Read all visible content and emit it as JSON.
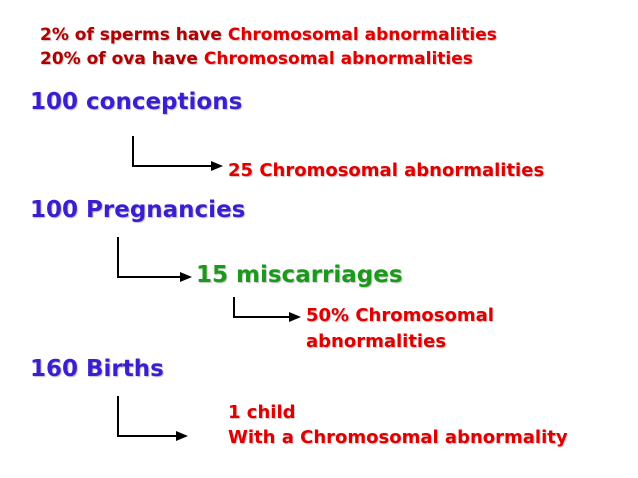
{
  "header": {
    "line1": {
      "prefix": "2% of sperms have ",
      "suffix": "Chromosomal abnormalities"
    },
    "line2": {
      "prefix": "20% of ova have ",
      "suffix": "Chromosomal abnormalities"
    }
  },
  "conceptions": {
    "label": "100 conceptions",
    "result": "25  Chromosomal abnormalities"
  },
  "pregnancies": {
    "label": "100 Pregnancies",
    "miscarriages": "15 miscarriages",
    "result_line1": "50% Chromosomal",
    "result_line2": "abnormalities"
  },
  "births": {
    "label": "160 Births",
    "result_line1": "1 child",
    "result_line2": "With a Chromosomal abnormality"
  },
  "colors": {
    "dark_red": "#b00000",
    "red": "#e00000",
    "blue": "#3a1fd0",
    "green": "#1a9a1a"
  }
}
